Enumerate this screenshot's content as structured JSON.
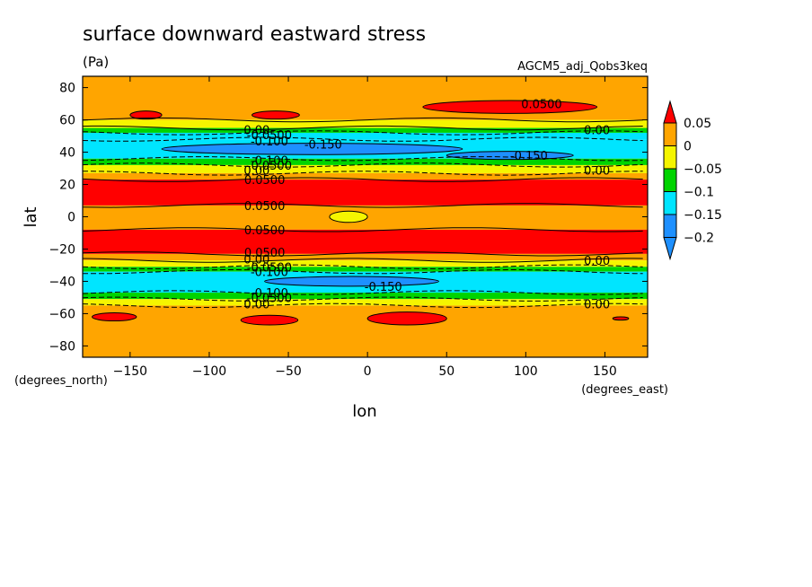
{
  "chart_data": {
    "type": "heatmap",
    "title": "surface downward eastward stress",
    "units": "(Pa)",
    "model_label": "AGCM5_adj_Qobs3keq",
    "xlabel": "lon",
    "ylabel": "lat",
    "x_units": "(degrees_east)",
    "y_units": "(degrees_north)",
    "xlim": [
      -180,
      177
    ],
    "ylim": [
      -87,
      87
    ],
    "x_ticks": [
      -150,
      -100,
      -50,
      0,
      50,
      100,
      150
    ],
    "y_ticks": [
      -80,
      -60,
      -40,
      -20,
      0,
      20,
      40,
      60,
      80
    ],
    "colorbar": {
      "levels": [
        -0.2,
        -0.15,
        -0.1,
        -0.05,
        0,
        0.05
      ],
      "labels": [
        "−0.2",
        "−0.15",
        "−0.1",
        "−0.05",
        "0",
        "0.05"
      ],
      "colors": [
        "#1e90ff",
        "#00e5ff",
        "#00d400",
        "#f5f500",
        "#ffa500",
        "#ff0000"
      ]
    },
    "zonal_bands": [
      {
        "lat": [
          60,
          87
        ],
        "value": 0.025,
        "color": "#ffa500"
      },
      {
        "lat": [
          55,
          60
        ],
        "value": 0.0,
        "color": "#f5f500"
      },
      {
        "lat": [
          52,
          55
        ],
        "value": -0.075,
        "color": "#00d400"
      },
      {
        "lat": [
          48,
          52
        ],
        "value": -0.12,
        "color": "#00e5ff"
      },
      {
        "lat": [
          36,
          48
        ],
        "value": -0.16,
        "color": "#00e5ff"
      },
      {
        "lat": [
          32,
          36
        ],
        "value": -0.075,
        "color": "#00d400"
      },
      {
        "lat": [
          27,
          32
        ],
        "value": -0.02,
        "color": "#f5f500"
      },
      {
        "lat": [
          23,
          27
        ],
        "value": 0.025,
        "color": "#ffa500"
      },
      {
        "lat": [
          7,
          23
        ],
        "value": 0.06,
        "color": "#ff0000"
      },
      {
        "lat": [
          -8,
          7
        ],
        "value": 0.025,
        "color": "#ffa500"
      },
      {
        "lat": [
          -23,
          -8
        ],
        "value": 0.06,
        "color": "#ff0000"
      },
      {
        "lat": [
          -27,
          -23
        ],
        "value": 0.025,
        "color": "#ffa500"
      },
      {
        "lat": [
          -31,
          -27
        ],
        "value": -0.02,
        "color": "#f5f500"
      },
      {
        "lat": [
          -34,
          -31
        ],
        "value": -0.075,
        "color": "#00d400"
      },
      {
        "lat": [
          -47,
          -34
        ],
        "value": -0.16,
        "color": "#00e5ff"
      },
      {
        "lat": [
          -51,
          -47
        ],
        "value": -0.075,
        "color": "#00d400"
      },
      {
        "lat": [
          -55,
          -51
        ],
        "value": -0.02,
        "color": "#f5f500"
      },
      {
        "lat": [
          -87,
          -55
        ],
        "value": 0.025,
        "color": "#ffa500"
      }
    ],
    "blobs": [
      {
        "lon": -140,
        "lat": 63,
        "rlon": 10,
        "rlat": 2.5,
        "color": "#ff0000"
      },
      {
        "lon": -58,
        "lat": 63,
        "rlon": 15,
        "rlat": 2.5,
        "color": "#ff0000"
      },
      {
        "lon": 90,
        "lat": 68,
        "rlon": 55,
        "rlat": 4,
        "color": "#ff0000"
      },
      {
        "lon": -12,
        "lat": 0,
        "rlon": 12,
        "rlat": 3.5,
        "color": "#f5f500"
      },
      {
        "lon": -62,
        "lat": -64,
        "rlon": 18,
        "rlat": 3,
        "color": "#ff0000"
      },
      {
        "lon": 25,
        "lat": -63,
        "rlon": 25,
        "rlat": 4,
        "color": "#ff0000"
      },
      {
        "lon": -160,
        "lat": -62,
        "rlon": 14,
        "rlat": 2.5,
        "color": "#ff0000"
      },
      {
        "lon": 160,
        "lat": -63,
        "rlon": 5,
        "rlat": 1,
        "color": "#ff0000"
      },
      {
        "lon": -35,
        "lat": 42,
        "rlon": 95,
        "rlat": 3.5,
        "color": "#1e90ff"
      },
      {
        "lon": 90,
        "lat": 38,
        "rlon": 40,
        "rlat": 2.5,
        "color": "#1e90ff"
      },
      {
        "lon": -10,
        "lat": -40,
        "rlon": 55,
        "rlat": 3,
        "color": "#1e90ff"
      }
    ],
    "contour_labels": [
      {
        "text": "0.0500",
        "lon": 110,
        "lat": 70
      },
      {
        "text": "0.00",
        "lon": 145,
        "lat": 54
      },
      {
        "text": "0.00",
        "lon": -70,
        "lat": 54
      },
      {
        "text": "-0.0500",
        "lon": -62,
        "lat": 51
      },
      {
        "text": "-0.100",
        "lon": -62,
        "lat": 47
      },
      {
        "text": "-0.150",
        "lon": -28,
        "lat": 45
      },
      {
        "text": "-0.150",
        "lon": 102,
        "lat": 38
      },
      {
        "text": "-0.100",
        "lon": -62,
        "lat": 35
      },
      {
        "text": "-0.0500",
        "lon": -62,
        "lat": 32
      },
      {
        "text": "0.00",
        "lon": -70,
        "lat": 29
      },
      {
        "text": "0.00",
        "lon": 145,
        "lat": 29
      },
      {
        "text": "0.0500",
        "lon": -65,
        "lat": 23
      },
      {
        "text": "0.0500",
        "lon": -65,
        "lat": 7
      },
      {
        "text": "0.0500",
        "lon": -65,
        "lat": -8
      },
      {
        "text": "0.0500",
        "lon": -65,
        "lat": -22
      },
      {
        "text": "0.00",
        "lon": -70,
        "lat": -26
      },
      {
        "text": "0.00",
        "lon": 145,
        "lat": -27
      },
      {
        "text": "-0.0500",
        "lon": -62,
        "lat": -31
      },
      {
        "text": "-0.100",
        "lon": -62,
        "lat": -34
      },
      {
        "text": "-0.150",
        "lon": 10,
        "lat": -43
      },
      {
        "text": "-0.100",
        "lon": -62,
        "lat": -47
      },
      {
        "text": "-0.0500",
        "lon": -62,
        "lat": -50
      },
      {
        "text": "0.00",
        "lon": -70,
        "lat": -54
      },
      {
        "text": "0.00",
        "lon": 145,
        "lat": -54
      }
    ]
  }
}
